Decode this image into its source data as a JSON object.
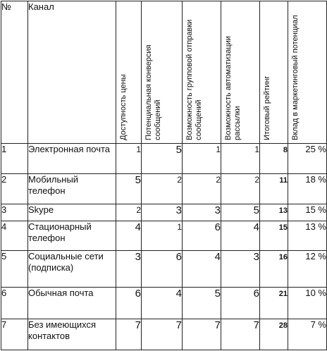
{
  "table": {
    "headers": {
      "number": "№",
      "channel": "Канал",
      "price": "Доступность цены",
      "conversion": "Потенциальная конверсия сообщений",
      "group_send": "Возможность групповой отправки сообщений",
      "automation": "Возможность автоматизации рассылки",
      "total": "Итоговый рейтинг",
      "contribution": "Вклад в маркетинговый потенциал"
    },
    "rows": [
      {
        "no": "1",
        "channel": "Электронная почта",
        "price": "1",
        "conversion": "5",
        "group_send": "1",
        "automation": "1",
        "total": "8",
        "contribution": "25 %"
      },
      {
        "no": "2",
        "channel": "Мобильный телефон",
        "price": "5",
        "conversion": "2",
        "group_send": "2",
        "automation": "2",
        "total": "11",
        "contribution": "18 %"
      },
      {
        "no": "3",
        "channel": "Skype",
        "price": "2",
        "conversion": "3",
        "group_send": "3",
        "automation": "5",
        "total": "13",
        "contribution": "15 %"
      },
      {
        "no": "4",
        "channel": "Стационарный телефон",
        "price": "4",
        "conversion": "1",
        "group_send": "6",
        "automation": "4",
        "total": "15",
        "contribution": "13 %"
      },
      {
        "no": "5",
        "channel": "Социальные сети (подписка)",
        "price": "3",
        "conversion": "6",
        "group_send": "4",
        "automation": "3",
        "total": "16",
        "contribution": "12 %"
      },
      {
        "no": "6",
        "channel": "Обычная почта",
        "price": "6",
        "conversion": "4",
        "group_send": "5",
        "automation": "6",
        "total": "21",
        "contribution": "10 %"
      },
      {
        "no": "7",
        "channel": "Без имеющихся контактов",
        "price": "7",
        "conversion": "7",
        "group_send": "7",
        "automation": "7",
        "total": "28",
        "contribution": "7 %"
      }
    ]
  }
}
